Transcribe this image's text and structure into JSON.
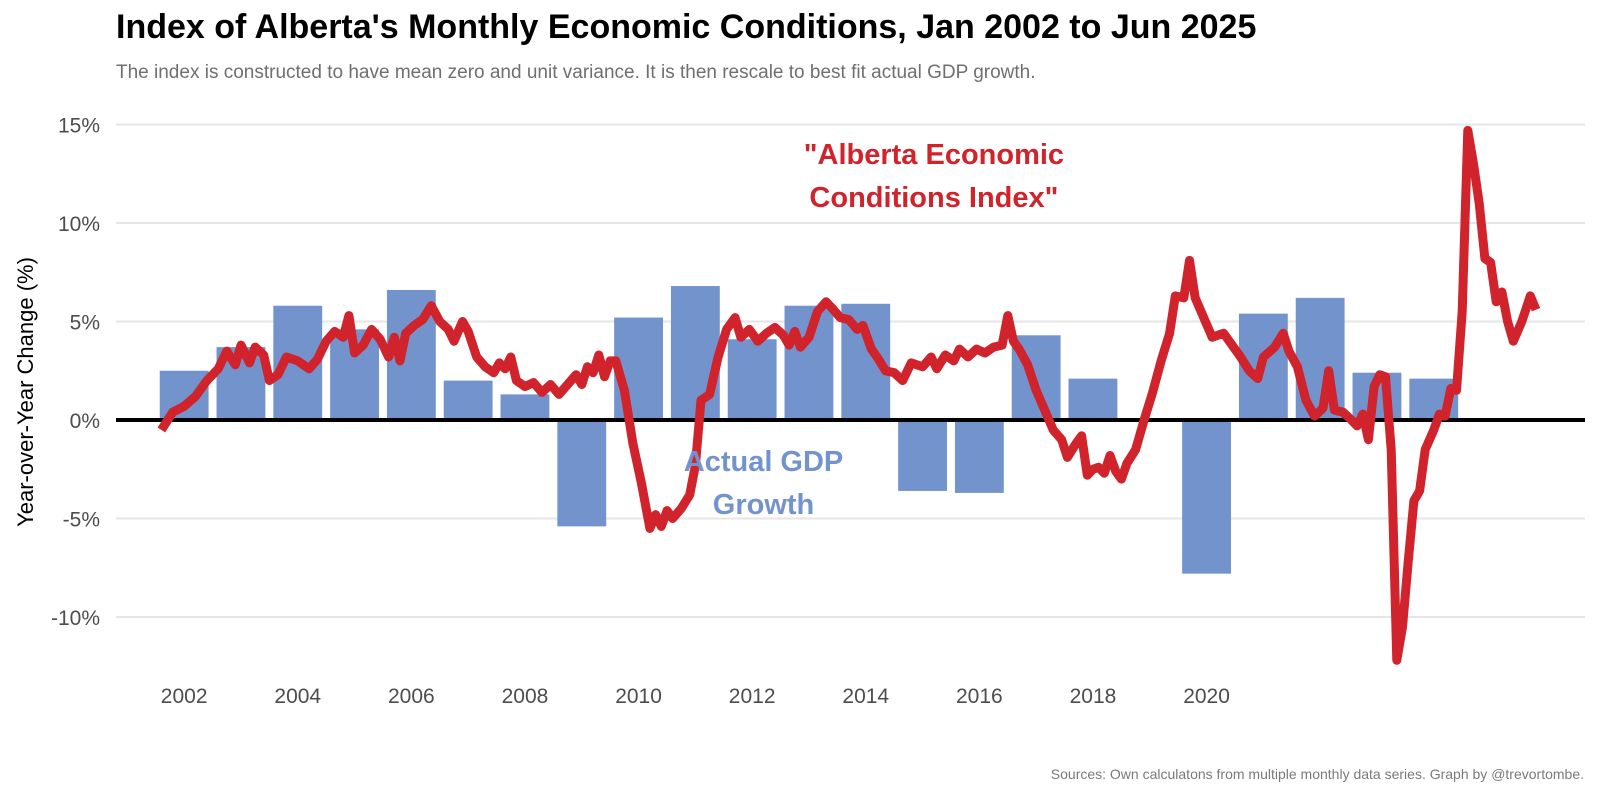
{
  "title": "Index of Alberta's Monthly Economic Conditions, Jan 2002 to Jun 2025",
  "subtitle": "The index is constructed to have mean zero and unit variance. It is then rescale to best fit actual GDP growth.",
  "caption": "Sources: Own calculatons from multiple monthly data series. Graph by @trevortombe.",
  "colors": {
    "index_line": "#d0232c",
    "gdp_bars": "#7393cc",
    "zero_line": "#000000",
    "grid": "#e6e6e6"
  },
  "chart_data": {
    "type": "bar+line",
    "ylabel": "Year-over-Year Change (%)",
    "xlabel": "",
    "ylim": [
      -12.5,
      15.5
    ],
    "xlim": [
      2001.3,
      2025.9
    ],
    "y_ticks": [
      15,
      10,
      5,
      0,
      -5,
      -10
    ],
    "y_tick_labels": [
      "15%",
      "10%",
      "5%",
      "0%",
      "-5%",
      "-10%"
    ],
    "x_ticks": [
      2002,
      2004,
      2006,
      2008,
      2010,
      2012,
      2014,
      2016,
      2018,
      2020
    ],
    "x_tick_labels": [
      "2002",
      "2004",
      "2006",
      "2008",
      "2010",
      "2012",
      "2014",
      "2016",
      "2018",
      "2020"
    ],
    "grid": true,
    "zero_line": true,
    "annotations": [
      {
        "lines": [
          "\"Alberta Economic",
          "Conditions Index\""
        ],
        "series": "index",
        "x": 2015.2,
        "y": 13.0
      },
      {
        "lines": [
          "Actual GDP",
          "Growth"
        ],
        "series": "gdp",
        "x": 2012.2,
        "y": -2.6
      }
    ],
    "bars": {
      "name": "Actual GDP Growth",
      "x": [
        2002,
        2003,
        2004,
        2005,
        2006,
        2007,
        2008,
        2009,
        2010,
        2011,
        2012,
        2013,
        2014,
        2015,
        2016,
        2017,
        2018,
        2019,
        2020,
        2021,
        2022,
        2023,
        2024
      ],
      "values": [
        2.5,
        3.7,
        5.8,
        4.6,
        6.6,
        2.0,
        1.3,
        -5.4,
        5.2,
        6.8,
        4.1,
        5.8,
        5.9,
        -3.6,
        -3.7,
        4.3,
        2.1,
        0.1,
        -7.8,
        5.4,
        6.2,
        2.4,
        2.1
      ]
    },
    "series": [
      {
        "name": "Alberta Economic Conditions Index",
        "points": [
          [
            2001.6,
            -0.5
          ],
          [
            2001.8,
            0.4
          ],
          [
            2002.0,
            0.7
          ],
          [
            2002.2,
            1.2
          ],
          [
            2002.4,
            2.0
          ],
          [
            2002.6,
            2.6
          ],
          [
            2002.75,
            3.5
          ],
          [
            2002.9,
            2.8
          ],
          [
            2003.0,
            3.8
          ],
          [
            2003.15,
            2.9
          ],
          [
            2003.25,
            3.7
          ],
          [
            2003.4,
            3.3
          ],
          [
            2003.5,
            2.0
          ],
          [
            2003.65,
            2.3
          ],
          [
            2003.8,
            3.2
          ],
          [
            2004.0,
            3.0
          ],
          [
            2004.2,
            2.6
          ],
          [
            2004.35,
            3.1
          ],
          [
            2004.5,
            4.0
          ],
          [
            2004.65,
            4.5
          ],
          [
            2004.8,
            4.2
          ],
          [
            2004.9,
            5.3
          ],
          [
            2005.0,
            3.4
          ],
          [
            2005.15,
            3.8
          ],
          [
            2005.3,
            4.6
          ],
          [
            2005.45,
            4.1
          ],
          [
            2005.6,
            3.2
          ],
          [
            2005.7,
            4.2
          ],
          [
            2005.8,
            3.0
          ],
          [
            2005.9,
            4.4
          ],
          [
            2006.05,
            4.8
          ],
          [
            2006.2,
            5.1
          ],
          [
            2006.35,
            5.8
          ],
          [
            2006.5,
            5.0
          ],
          [
            2006.65,
            4.6
          ],
          [
            2006.75,
            4.0
          ],
          [
            2006.9,
            5.0
          ],
          [
            2007.0,
            4.5
          ],
          [
            2007.15,
            3.2
          ],
          [
            2007.3,
            2.7
          ],
          [
            2007.45,
            2.4
          ],
          [
            2007.55,
            2.9
          ],
          [
            2007.65,
            2.6
          ],
          [
            2007.75,
            3.2
          ],
          [
            2007.85,
            2.0
          ],
          [
            2008.0,
            1.7
          ],
          [
            2008.15,
            1.9
          ],
          [
            2008.3,
            1.4
          ],
          [
            2008.45,
            1.8
          ],
          [
            2008.6,
            1.3
          ],
          [
            2008.75,
            1.8
          ],
          [
            2008.9,
            2.3
          ],
          [
            2009.0,
            1.8
          ],
          [
            2009.1,
            2.7
          ],
          [
            2009.2,
            2.4
          ],
          [
            2009.3,
            3.3
          ],
          [
            2009.4,
            2.2
          ],
          [
            2009.5,
            3.0
          ],
          [
            2009.6,
            3.0
          ],
          [
            2009.75,
            1.5
          ],
          [
            2009.9,
            -1.2
          ],
          [
            2010.05,
            -3.2
          ],
          [
            2010.2,
            -5.5
          ],
          [
            2010.3,
            -4.8
          ],
          [
            2010.4,
            -5.4
          ],
          [
            2010.5,
            -4.6
          ],
          [
            2010.6,
            -5.0
          ],
          [
            2010.75,
            -4.5
          ],
          [
            2010.9,
            -3.8
          ],
          [
            2011.0,
            -2.3
          ],
          [
            2011.1,
            1.0
          ],
          [
            2011.25,
            1.3
          ],
          [
            2011.4,
            3.2
          ],
          [
            2011.55,
            4.6
          ],
          [
            2011.7,
            5.2
          ],
          [
            2011.8,
            4.2
          ],
          [
            2011.95,
            4.6
          ],
          [
            2012.1,
            4.0
          ],
          [
            2012.25,
            4.4
          ],
          [
            2012.4,
            4.7
          ],
          [
            2012.55,
            4.3
          ],
          [
            2012.65,
            3.8
          ],
          [
            2012.75,
            4.5
          ],
          [
            2012.85,
            3.7
          ],
          [
            2013.0,
            4.2
          ],
          [
            2013.15,
            5.5
          ],
          [
            2013.3,
            6.0
          ],
          [
            2013.4,
            5.7
          ],
          [
            2013.55,
            5.2
          ],
          [
            2013.7,
            5.1
          ],
          [
            2013.85,
            4.6
          ],
          [
            2013.95,
            4.8
          ],
          [
            2014.1,
            3.6
          ],
          [
            2014.2,
            3.2
          ],
          [
            2014.35,
            2.5
          ],
          [
            2014.5,
            2.4
          ],
          [
            2014.65,
            2.0
          ],
          [
            2014.8,
            2.9
          ],
          [
            2015.0,
            2.7
          ],
          [
            2015.15,
            3.2
          ],
          [
            2015.25,
            2.6
          ],
          [
            2015.4,
            3.3
          ],
          [
            2015.55,
            3.0
          ],
          [
            2015.65,
            3.6
          ],
          [
            2015.8,
            3.2
          ],
          [
            2015.95,
            3.6
          ],
          [
            2016.1,
            3.4
          ],
          [
            2016.25,
            3.7
          ],
          [
            2016.4,
            3.8
          ],
          [
            2016.5,
            5.3
          ],
          [
            2016.6,
            4.0
          ],
          [
            2016.7,
            3.6
          ],
          [
            2016.85,
            2.8
          ],
          [
            2017.0,
            1.5
          ],
          [
            2017.15,
            0.5
          ],
          [
            2017.3,
            -0.5
          ],
          [
            2017.45,
            -1.0
          ],
          [
            2017.55,
            -1.9
          ],
          [
            2017.7,
            -1.2
          ],
          [
            2017.8,
            -0.8
          ],
          [
            2017.9,
            -2.8
          ],
          [
            2018.0,
            -2.5
          ],
          [
            2018.1,
            -2.4
          ],
          [
            2018.2,
            -2.7
          ],
          [
            2018.3,
            -1.8
          ],
          [
            2018.4,
            -2.6
          ],
          [
            2018.5,
            -3.0
          ],
          [
            2018.6,
            -2.2
          ],
          [
            2018.75,
            -1.5
          ],
          [
            2018.9,
            0.0
          ],
          [
            2019.05,
            1.4
          ],
          [
            2019.2,
            3.0
          ],
          [
            2019.35,
            4.4
          ],
          [
            2019.45,
            6.3
          ],
          [
            2019.6,
            6.2
          ],
          [
            2019.7,
            8.1
          ],
          [
            2019.8,
            6.2
          ],
          [
            2019.95,
            5.2
          ],
          [
            2020.1,
            4.2
          ],
          [
            2020.3,
            4.4
          ],
          [
            2020.45,
            3.8
          ],
          [
            2020.6,
            3.2
          ],
          [
            2020.75,
            2.5
          ],
          [
            2020.9,
            2.1
          ],
          [
            2021.0,
            3.2
          ],
          [
            2021.2,
            3.7
          ],
          [
            2021.35,
            4.4
          ],
          [
            2021.45,
            3.5
          ],
          [
            2021.6,
            2.7
          ],
          [
            2021.75,
            1.0
          ],
          [
            2021.9,
            0.2
          ],
          [
            2022.05,
            0.6
          ],
          [
            2022.15,
            2.5
          ],
          [
            2022.25,
            0.5
          ],
          [
            2022.4,
            0.4
          ],
          [
            2022.55,
            0.0
          ],
          [
            2022.65,
            -0.3
          ],
          [
            2022.75,
            0.3
          ],
          [
            2022.85,
            -1.0
          ],
          [
            2022.95,
            1.7
          ],
          [
            2023.05,
            2.3
          ],
          [
            2023.15,
            2.2
          ],
          [
            2023.25,
            -1.5
          ],
          [
            2023.35,
            -12.2
          ],
          [
            2023.45,
            -10.5
          ],
          [
            2023.55,
            -7.2
          ],
          [
            2023.65,
            -4.1
          ],
          [
            2023.75,
            -3.6
          ],
          [
            2023.85,
            -1.5
          ],
          [
            2024.0,
            -0.5
          ],
          [
            2024.1,
            0.3
          ],
          [
            2024.2,
            0.2
          ],
          [
            2024.3,
            1.6
          ],
          [
            2024.4,
            1.5
          ],
          [
            2024.5,
            5.5
          ],
          [
            2024.6,
            14.7
          ],
          [
            2024.7,
            13.0
          ],
          [
            2024.8,
            11.0
          ],
          [
            2024.9,
            8.2
          ],
          [
            2025.0,
            8.0
          ],
          [
            2025.1,
            6.0
          ],
          [
            2025.2,
            6.5
          ],
          [
            2025.3,
            5.0
          ],
          [
            2025.4,
            4.0
          ],
          [
            2025.55,
            5.0
          ],
          [
            2025.7,
            6.3
          ],
          [
            2025.8,
            5.6
          ]
        ]
      }
    ]
  }
}
